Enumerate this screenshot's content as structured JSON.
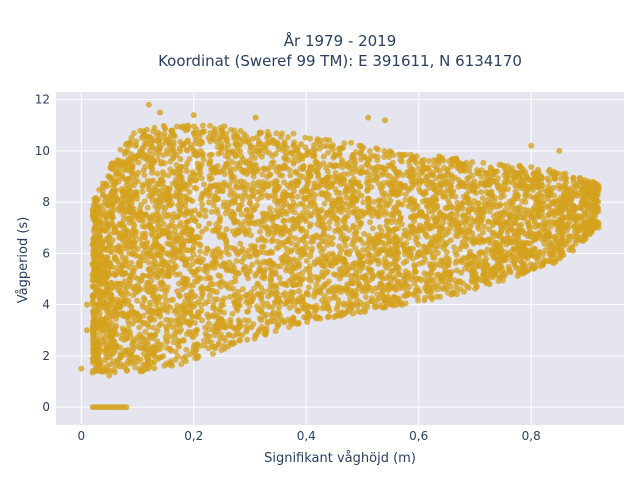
{
  "chart_data": {
    "type": "scatter",
    "title_lines": [
      "År 1979 - 2019",
      "Koordinat (Sweref 99 TM): E 391611, N 6134170"
    ],
    "xlabel": "Signifikant våghöjd (m)",
    "ylabel": "Vågperiod (s)",
    "xlim": [
      -0.045,
      0.965
    ],
    "ylim": [
      -0.7,
      12.3
    ],
    "x_ticks": [
      0,
      0.2,
      0.4,
      0.6,
      0.8
    ],
    "x_tick_labels": [
      "0",
      "0,2",
      "0,4",
      "0,6",
      "0,8"
    ],
    "y_ticks": [
      0,
      2,
      4,
      6,
      8,
      10,
      12
    ],
    "y_tick_labels": [
      "0",
      "2",
      "4",
      "6",
      "8",
      "10",
      "12"
    ],
    "grid": true,
    "colors": {
      "marker": "#d4a21e",
      "plot_bg": "#e5e5f0",
      "grid": "#ffffff",
      "text": "#2a3f5f"
    },
    "series": [
      {
        "values_description": "dense cloud of Hs/Tp observations",
        "envelope": {
          "x": [
            0.02,
            0.06,
            0.1,
            0.15,
            0.2,
            0.25,
            0.3,
            0.35,
            0.4,
            0.45,
            0.5,
            0.55,
            0.6,
            0.65,
            0.7,
            0.75,
            0.8,
            0.85,
            0.88,
            0.92
          ],
          "y_low": [
            1.3,
            1.2,
            1.3,
            1.5,
            1.8,
            2.2,
            2.6,
            3.0,
            3.3,
            3.5,
            3.7,
            3.9,
            4.1,
            4.3,
            4.6,
            4.9,
            5.3,
            5.7,
            6.2,
            7.0
          ],
          "y_high": [
            8.0,
            9.8,
            10.9,
            11.0,
            11.0,
            11.0,
            10.8,
            10.8,
            10.6,
            10.4,
            10.3,
            10.0,
            9.8,
            9.8,
            9.6,
            9.5,
            9.4,
            9.2,
            9.0,
            8.7
          ]
        },
        "zero_period_points": [
          [
            0.02,
            0
          ],
          [
            0.025,
            0
          ],
          [
            0.03,
            0
          ],
          [
            0.035,
            0
          ],
          [
            0.04,
            0
          ],
          [
            0.045,
            0
          ],
          [
            0.05,
            0
          ],
          [
            0.055,
            0
          ],
          [
            0.06,
            0
          ],
          [
            0.065,
            0
          ],
          [
            0.07,
            0
          ],
          [
            0.075,
            0
          ],
          [
            0.08,
            0
          ]
        ],
        "outliers": [
          [
            0.12,
            11.8
          ],
          [
            0.14,
            11.5
          ],
          [
            0.2,
            11.4
          ],
          [
            0.31,
            11.3
          ],
          [
            0.51,
            11.3
          ],
          [
            0.54,
            11.2
          ],
          [
            0.08,
            9.5
          ],
          [
            0.06,
            9.3
          ],
          [
            0.04,
            7.5
          ],
          [
            0.0,
            1.5
          ],
          [
            0.01,
            3.0
          ],
          [
            0.01,
            4.0
          ],
          [
            0.91,
            8.8
          ],
          [
            0.92,
            8.5
          ],
          [
            0.91,
            7.5
          ],
          [
            0.9,
            7.8
          ],
          [
            0.85,
            10.0
          ],
          [
            0.8,
            10.2
          ]
        ]
      }
    ]
  }
}
